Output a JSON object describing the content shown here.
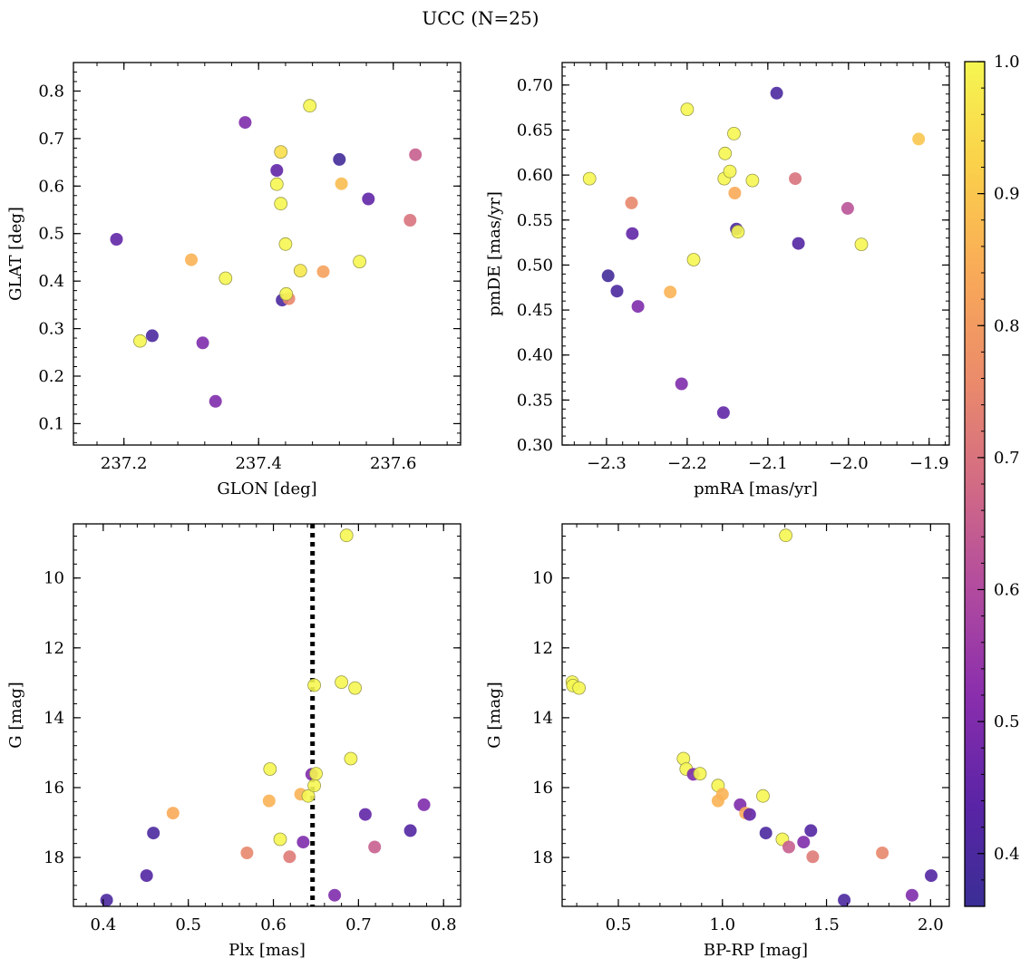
{
  "figure": {
    "title": "UCC (N=25)"
  },
  "colorbar": {
    "range": [
      0.36,
      1.0
    ],
    "ticks": [
      0.4,
      0.5,
      0.6,
      0.7,
      0.8,
      0.9,
      1.0
    ],
    "tick_labels": [
      "0.4",
      "0.5",
      "0.6",
      "0.7",
      "0.8",
      "0.9",
      "1.0"
    ],
    "colormap": "plasma"
  },
  "chart_data": [
    {
      "type": "scatter",
      "xlabel": "GLON [deg]",
      "ylabel": "GLAT [deg]",
      "xlim": [
        237.125,
        237.7
      ],
      "ylim": [
        0.055,
        0.86
      ],
      "xticks": [
        237.2,
        237.4,
        237.6
      ],
      "xtick_labels": [
        "237.2",
        "237.4",
        "237.6"
      ],
      "yticks": [
        0.1,
        0.2,
        0.3,
        0.4,
        0.5,
        0.6,
        0.7,
        0.8
      ],
      "ytick_labels": [
        "0.1",
        "0.2",
        "0.3",
        "0.4",
        "0.5",
        "0.6",
        "0.7",
        "0.8"
      ],
      "points": [
        {
          "x": 237.189,
          "y": 0.488,
          "c": 0.45
        },
        {
          "x": 237.224,
          "y": 0.274,
          "c": 1.0
        },
        {
          "x": 237.242,
          "y": 0.285,
          "c": 0.4
        },
        {
          "x": 237.3,
          "y": 0.445,
          "c": 0.86
        },
        {
          "x": 237.317,
          "y": 0.27,
          "c": 0.5
        },
        {
          "x": 237.336,
          "y": 0.147,
          "c": 0.5
        },
        {
          "x": 237.351,
          "y": 0.406,
          "c": 1.0
        },
        {
          "x": 237.38,
          "y": 0.734,
          "c": 0.5
        },
        {
          "x": 237.427,
          "y": 0.604,
          "c": 1.0
        },
        {
          "x": 237.427,
          "y": 0.633,
          "c": 0.45
        },
        {
          "x": 237.433,
          "y": 0.672,
          "c": 0.95
        },
        {
          "x": 237.433,
          "y": 0.563,
          "c": 1.0
        },
        {
          "x": 237.435,
          "y": 0.36,
          "c": 0.4
        },
        {
          "x": 237.44,
          "y": 0.478,
          "c": 1.0
        },
        {
          "x": 237.445,
          "y": 0.363,
          "c": 0.75
        },
        {
          "x": 237.441,
          "y": 0.373,
          "c": 1.0
        },
        {
          "x": 237.462,
          "y": 0.422,
          "c": 0.97
        },
        {
          "x": 237.476,
          "y": 0.769,
          "c": 1.0
        },
        {
          "x": 237.496,
          "y": 0.42,
          "c": 0.82
        },
        {
          "x": 237.52,
          "y": 0.656,
          "c": 0.38
        },
        {
          "x": 237.523,
          "y": 0.605,
          "c": 0.88
        },
        {
          "x": 237.55,
          "y": 0.441,
          "c": 1.0
        },
        {
          "x": 237.563,
          "y": 0.573,
          "c": 0.45
        },
        {
          "x": 237.625,
          "y": 0.528,
          "c": 0.7
        },
        {
          "x": 237.633,
          "y": 0.666,
          "c": 0.65
        }
      ]
    },
    {
      "type": "scatter",
      "xlabel": "pmRA [mas/yr]",
      "ylabel": "pmDE [mas/yr]",
      "xlim": [
        -2.355,
        -1.875
      ],
      "ylim": [
        0.3,
        0.725
      ],
      "xticks": [
        -2.3,
        -2.2,
        -2.1,
        -2.0,
        -1.9
      ],
      "xtick_labels": [
        "−2.3",
        "−2.2",
        "−2.1",
        "−2.0",
        "−1.9"
      ],
      "yticks": [
        0.3,
        0.35,
        0.4,
        0.45,
        0.5,
        0.55,
        0.6,
        0.65,
        0.7
      ],
      "ytick_labels": [
        "0.30",
        "0.35",
        "0.40",
        "0.45",
        "0.50",
        "0.55",
        "0.60",
        "0.65",
        "0.70"
      ],
      "points": [
        {
          "x": -2.321,
          "y": 0.596,
          "c": 1.0
        },
        {
          "x": -2.298,
          "y": 0.488,
          "c": 0.38
        },
        {
          "x": -2.287,
          "y": 0.471,
          "c": 0.4
        },
        {
          "x": -2.269,
          "y": 0.569,
          "c": 0.75
        },
        {
          "x": -2.268,
          "y": 0.535,
          "c": 0.45
        },
        {
          "x": -2.261,
          "y": 0.454,
          "c": 0.5
        },
        {
          "x": -2.221,
          "y": 0.47,
          "c": 0.86
        },
        {
          "x": -2.207,
          "y": 0.368,
          "c": 0.5
        },
        {
          "x": -2.2,
          "y": 0.673,
          "c": 1.0
        },
        {
          "x": -2.192,
          "y": 0.506,
          "c": 1.0
        },
        {
          "x": -2.155,
          "y": 0.336,
          "c": 0.45
        },
        {
          "x": -2.154,
          "y": 0.596,
          "c": 1.0
        },
        {
          "x": -2.153,
          "y": 0.624,
          "c": 1.0
        },
        {
          "x": -2.147,
          "y": 0.604,
          "c": 1.0
        },
        {
          "x": -2.142,
          "y": 0.646,
          "c": 1.0
        },
        {
          "x": -2.141,
          "y": 0.58,
          "c": 0.84
        },
        {
          "x": -2.139,
          "y": 0.54,
          "c": 0.4
        },
        {
          "x": -2.137,
          "y": 0.537,
          "c": 1.0
        },
        {
          "x": -2.119,
          "y": 0.594,
          "c": 1.0
        },
        {
          "x": -2.089,
          "y": 0.691,
          "c": 0.4
        },
        {
          "x": -2.066,
          "y": 0.596,
          "c": 0.7
        },
        {
          "x": -2.062,
          "y": 0.524,
          "c": 0.42
        },
        {
          "x": -2.001,
          "y": 0.563,
          "c": 0.62
        },
        {
          "x": -1.984,
          "y": 0.523,
          "c": 1.0
        },
        {
          "x": -1.913,
          "y": 0.64,
          "c": 0.9
        }
      ]
    },
    {
      "type": "scatter",
      "xlabel": "Plx [mas]",
      "ylabel": "G [mag]",
      "xlim": [
        0.365,
        0.82
      ],
      "ylim": [
        19.4,
        8.45
      ],
      "y_inverted": true,
      "xticks": [
        0.4,
        0.5,
        0.6,
        0.7,
        0.8
      ],
      "xtick_labels": [
        "0.4",
        "0.5",
        "0.6",
        "0.7",
        "0.8"
      ],
      "yticks": [
        10,
        12,
        14,
        16,
        18
      ],
      "ytick_labels": [
        "10",
        "12",
        "14",
        "16",
        "18"
      ],
      "vline": {
        "x": 0.646
      },
      "points": [
        {
          "x": 0.404,
          "y": 19.22,
          "c": 0.4
        },
        {
          "x": 0.451,
          "y": 18.52,
          "c": 0.42
        },
        {
          "x": 0.459,
          "y": 17.3,
          "c": 0.4
        },
        {
          "x": 0.482,
          "y": 16.73,
          "c": 0.84
        },
        {
          "x": 0.569,
          "y": 17.87,
          "c": 0.75
        },
        {
          "x": 0.596,
          "y": 15.47,
          "c": 1.0
        },
        {
          "x": 0.595,
          "y": 16.38,
          "c": 0.86
        },
        {
          "x": 0.608,
          "y": 17.48,
          "c": 1.0
        },
        {
          "x": 0.619,
          "y": 17.98,
          "c": 0.72
        },
        {
          "x": 0.632,
          "y": 16.19,
          "c": 0.86
        },
        {
          "x": 0.635,
          "y": 17.56,
          "c": 0.5
        },
        {
          "x": 0.641,
          "y": 16.24,
          "c": 1.0
        },
        {
          "x": 0.645,
          "y": 15.62,
          "c": 0.5
        },
        {
          "x": 0.648,
          "y": 15.94,
          "c": 1.0
        },
        {
          "x": 0.648,
          "y": 13.07,
          "c": 1.0
        },
        {
          "x": 0.65,
          "y": 15.6,
          "c": 1.0
        },
        {
          "x": 0.672,
          "y": 19.08,
          "c": 0.5
        },
        {
          "x": 0.68,
          "y": 12.98,
          "c": 1.0
        },
        {
          "x": 0.686,
          "y": 8.78,
          "c": 1.0
        },
        {
          "x": 0.691,
          "y": 15.17,
          "c": 1.0
        },
        {
          "x": 0.696,
          "y": 13.15,
          "c": 1.0
        },
        {
          "x": 0.708,
          "y": 16.77,
          "c": 0.45
        },
        {
          "x": 0.719,
          "y": 17.7,
          "c": 0.65
        },
        {
          "x": 0.761,
          "y": 17.23,
          "c": 0.42
        },
        {
          "x": 0.777,
          "y": 16.49,
          "c": 0.5
        }
      ]
    },
    {
      "type": "scatter",
      "xlabel": "BP-RP [mag]",
      "ylabel": "G [mag]",
      "xlim": [
        0.23,
        2.09
      ],
      "ylim": [
        19.4,
        8.45
      ],
      "y_inverted": true,
      "xticks": [
        0.5,
        1.0,
        1.5,
        2.0
      ],
      "xtick_labels": [
        "0.5",
        "1.0",
        "1.5",
        "2.0"
      ],
      "yticks": [
        10,
        12,
        14,
        16,
        18
      ],
      "ytick_labels": [
        "10",
        "12",
        "14",
        "16",
        "18"
      ],
      "points": [
        {
          "x": 0.279,
          "y": 12.98,
          "c": 1.0
        },
        {
          "x": 0.282,
          "y": 13.08,
          "c": 1.0
        },
        {
          "x": 0.311,
          "y": 13.15,
          "c": 1.0
        },
        {
          "x": 0.813,
          "y": 15.17,
          "c": 1.0
        },
        {
          "x": 0.826,
          "y": 15.47,
          "c": 1.0
        },
        {
          "x": 0.86,
          "y": 15.62,
          "c": 0.5
        },
        {
          "x": 0.892,
          "y": 15.6,
          "c": 1.0
        },
        {
          "x": 0.979,
          "y": 15.94,
          "c": 1.0
        },
        {
          "x": 0.979,
          "y": 16.38,
          "c": 0.86
        },
        {
          "x": 1.0,
          "y": 16.19,
          "c": 0.86
        },
        {
          "x": 1.085,
          "y": 16.49,
          "c": 0.5
        },
        {
          "x": 1.111,
          "y": 16.73,
          "c": 0.84
        },
        {
          "x": 1.131,
          "y": 16.77,
          "c": 0.45
        },
        {
          "x": 1.195,
          "y": 16.24,
          "c": 1.0
        },
        {
          "x": 1.209,
          "y": 17.3,
          "c": 0.4
        },
        {
          "x": 1.288,
          "y": 17.48,
          "c": 1.0
        },
        {
          "x": 1.304,
          "y": 8.78,
          "c": 1.0
        },
        {
          "x": 1.319,
          "y": 17.7,
          "c": 0.65
        },
        {
          "x": 1.39,
          "y": 17.56,
          "c": 0.5
        },
        {
          "x": 1.425,
          "y": 17.23,
          "c": 0.42
        },
        {
          "x": 1.434,
          "y": 17.98,
          "c": 0.72
        },
        {
          "x": 1.585,
          "y": 19.22,
          "c": 0.4
        },
        {
          "x": 1.768,
          "y": 17.87,
          "c": 0.75
        },
        {
          "x": 1.911,
          "y": 19.08,
          "c": 0.5
        },
        {
          "x": 2.003,
          "y": 18.52,
          "c": 0.42
        }
      ]
    }
  ]
}
